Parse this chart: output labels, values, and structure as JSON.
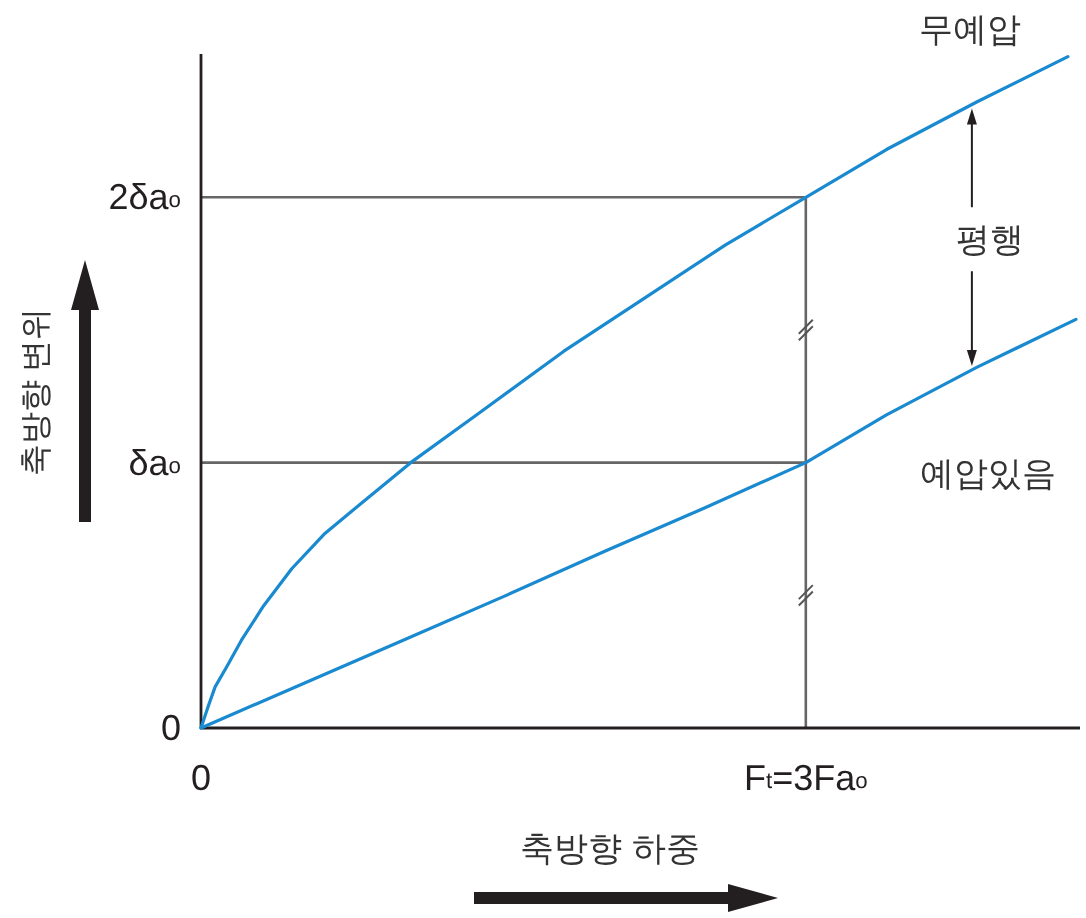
{
  "chart_data": {
    "type": "line",
    "xlabel": "축방향 하중",
    "ylabel": "축방향 변위",
    "xlim": [
      0,
      4.36
    ],
    "ylim": [
      0,
      2.54
    ],
    "xticks": [
      {
        "value": 0,
        "label": "0"
      },
      {
        "value": 3,
        "label": "F$_{t}$=3Fa$_{o}$"
      }
    ],
    "yticks": [
      {
        "value": 0,
        "label": "0"
      },
      {
        "value": 1,
        "label": "δa$_{o}$"
      },
      {
        "value": 2,
        "label": "2δa$_{o}$"
      }
    ],
    "series": [
      {
        "name": "무예압",
        "color": "#1a8ad0",
        "x": [
          0,
          0.035,
          0.07,
          0.127,
          0.2,
          0.31,
          0.45,
          0.61,
          0.8,
          1.04,
          1.385,
          1.8,
          2.2,
          2.6,
          3,
          3.4,
          3.85,
          4.3
        ],
        "values": [
          0,
          0.08,
          0.155,
          0.23,
          0.33,
          0.46,
          0.6,
          0.73,
          0.85,
          1.0,
          1.19,
          1.42,
          1.62,
          1.82,
          2,
          2.18,
          2.36,
          2.53
        ]
      },
      {
        "name": "예압있음",
        "color": "#1a8ad0",
        "x": [
          0,
          0.5,
          1,
          1.5,
          2,
          2.5,
          3,
          3.4,
          3.85,
          4.34
        ],
        "values": [
          0,
          0.165,
          0.33,
          0.495,
          0.665,
          0.83,
          1,
          1.18,
          1.36,
          1.54
        ]
      }
    ],
    "ref_lines": [
      {
        "axis": "y",
        "value": 1,
        "color": "#666666"
      },
      {
        "axis": "y",
        "value": 2,
        "color": "#666666"
      },
      {
        "axis": "x",
        "value": 3,
        "color": "#666666"
      }
    ],
    "annotations": [
      "평행"
    ],
    "line_style": "solid"
  }
}
